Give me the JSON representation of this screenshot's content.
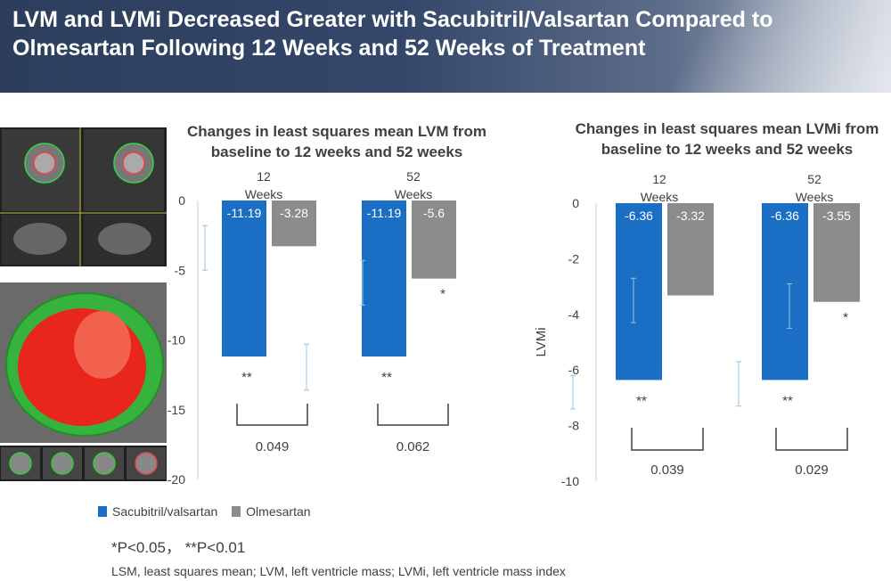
{
  "title": "LVM and LVMi Decreased Greater with Sacubitril/Valsartan Compared to Olmesartan Following 12 Weeks and 52 Weeks of Treatment",
  "legend": {
    "items": [
      {
        "label": "Sacubitril/valsartan",
        "color": "#1a6fc4"
      },
      {
        "label": "Olmesartan",
        "color": "#8c8c8c"
      }
    ]
  },
  "p_note": "*P<0.05， **P<0.01",
  "footnote": "LSM, least squares mean; LVM, left ventricle mass; LVMi, left ventricle mass index",
  "chart_data": [
    {
      "type": "bar",
      "title": "Changes in least squares mean LVM from baseline to 12 weeks and 52 weeks",
      "ylabel": "",
      "ylim": [
        -20,
        0
      ],
      "yticks": [
        0,
        -5,
        -10,
        -15,
        -20
      ],
      "categories": [
        "12 Weeks",
        "52 Weeks"
      ],
      "series": [
        {
          "name": "Sacubitril/valsartan",
          "values": [
            -11.19,
            -11.19
          ],
          "labels": [
            "-11.19",
            "-11.19"
          ],
          "significance": [
            "**",
            "**"
          ]
        },
        {
          "name": "Olmesartan",
          "values": [
            -3.28,
            -5.6
          ],
          "labels": [
            "-3.28",
            "-5.6"
          ],
          "significance": [
            "",
            "*"
          ]
        }
      ],
      "p_values": [
        "0.049",
        "0.062"
      ],
      "error_bars": [
        [
          -1.8,
          -5.0
        ],
        [
          -10.3,
          -13.6
        ],
        [
          -4.3,
          -7.5
        ]
      ]
    },
    {
      "type": "bar",
      "title": "Changes in least squares mean LVMi from baseline to 12 weeks and 52 weeks",
      "ylabel": "LVMi",
      "ylim": [
        -10,
        0
      ],
      "yticks": [
        0,
        -2,
        -4,
        -6,
        -8,
        -10
      ],
      "categories": [
        "12 Weeks",
        "52 Weeks"
      ],
      "series": [
        {
          "name": "Sacubitril/valsartan",
          "values": [
            -6.36,
            -6.36
          ],
          "labels": [
            "-6.36",
            "-6.36"
          ],
          "significance": [
            "**",
            "**"
          ]
        },
        {
          "name": "Olmesartan",
          "values": [
            -3.32,
            -3.55
          ],
          "labels": [
            "-3.32",
            "-3.55"
          ],
          "significance": [
            "",
            "*"
          ]
        }
      ],
      "p_values": [
        "0.039",
        "0.029"
      ],
      "error_bars": [
        [
          -2.7,
          -4.3
        ],
        [
          -2.9,
          -4.5
        ],
        [
          -5.7,
          -7.3
        ],
        [
          -6.2,
          -7.4
        ]
      ]
    }
  ]
}
